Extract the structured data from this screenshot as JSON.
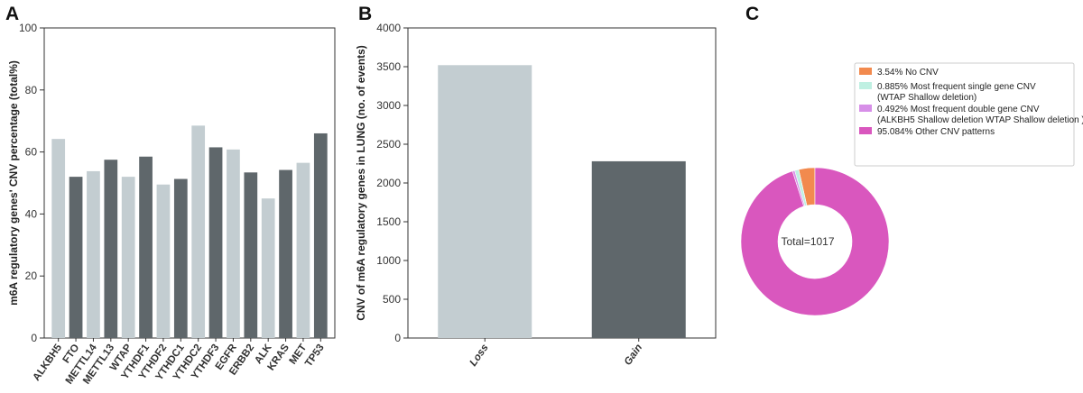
{
  "panels": [
    {
      "letter": "A",
      "chart_data": {
        "type": "bar",
        "title": "",
        "xlabel": "",
        "ylabel": "m6A regulatory genes' CNV percentage (total%)",
        "categories": [
          "ALKBH5",
          "FTO",
          "METTL14",
          "METTL13",
          "WTAP",
          "YTHDF1",
          "YTHDF2",
          "YTHDC1",
          "YTHDC2",
          "YTHDF3",
          "EGFR",
          "ERBB2",
          "ALK",
          "KRAS",
          "MET",
          "TP53"
        ],
        "values": [
          64.2,
          52.0,
          53.8,
          57.5,
          52.0,
          58.5,
          49.5,
          51.3,
          68.5,
          61.5,
          60.8,
          53.4,
          45.0,
          54.2,
          56.5,
          66.0
        ],
        "colors": [
          "#c3cdd1",
          "#5f676b",
          "#c3cdd1",
          "#5f676b",
          "#c3cdd1",
          "#5f676b",
          "#c3cdd1",
          "#5f676b",
          "#c3cdd1",
          "#5f676b",
          "#c3cdd1",
          "#5f676b",
          "#c3cdd1",
          "#5f676b",
          "#c3cdd1",
          "#5f676b"
        ],
        "ylim": [
          0,
          100
        ],
        "yticks": [
          0,
          20,
          40,
          60,
          80,
          100
        ],
        "grid": false
      }
    },
    {
      "letter": "B",
      "chart_data": {
        "type": "bar",
        "title": "",
        "xlabel": "",
        "ylabel": "CNV of m6A regulatory genes in LUNG (no. of events)",
        "categories": [
          "Loss",
          "Gain"
        ],
        "values": [
          3520,
          2280
        ],
        "colors": [
          "#c3cdd1",
          "#5f676b"
        ],
        "ylim": [
          0,
          4000
        ],
        "yticks": [
          0,
          500,
          1000,
          1500,
          2000,
          2500,
          3000,
          3500,
          4000
        ],
        "grid": false
      }
    },
    {
      "letter": "C",
      "chart_data": {
        "type": "pie",
        "title": "",
        "center_label": "Total=1017",
        "slices": [
          {
            "label": "3.54% No CNV",
            "value": 3.54,
            "color": "#f28a4e"
          },
          {
            "label": "0.885% Most frequent single gene CNV\n (WTAP Shallow deletion)",
            "value": 0.885,
            "color": "#bff0e2"
          },
          {
            "label": "0.492% Most frequent double gene CNV\n (ALKBH5 Shallow deletion WTAP Shallow deletion )",
            "value": 0.492,
            "color": "#d78fe8"
          },
          {
            "label": "95.084% Other CNV patterns",
            "value": 95.084,
            "color": "#d957be"
          }
        ],
        "legend_position": "top-right"
      }
    }
  ]
}
